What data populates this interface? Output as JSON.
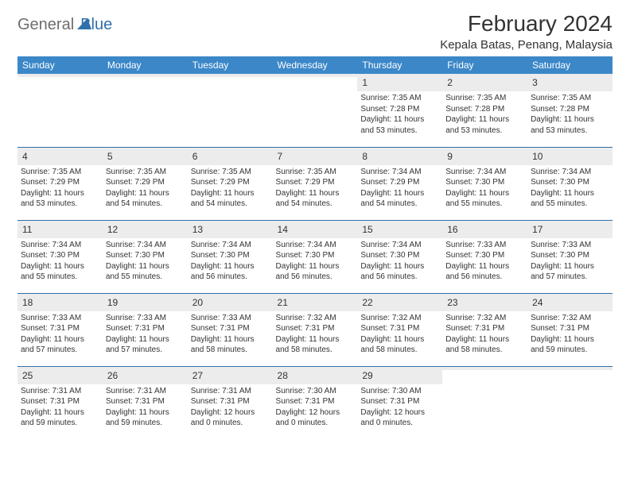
{
  "brand": {
    "part1": "General",
    "part2": "Blue"
  },
  "title": "February 2024",
  "location": "Kepala Batas, Penang, Malaysia",
  "colors": {
    "header_bg": "#3b87c8",
    "header_text": "#ffffff",
    "row_divider": "#2f6fab",
    "daynum_bg": "#ececec",
    "text": "#333333",
    "brand_gray": "#6e6e6e",
    "brand_blue": "#2f6fab"
  },
  "day_labels": [
    "Sunday",
    "Monday",
    "Tuesday",
    "Wednesday",
    "Thursday",
    "Friday",
    "Saturday"
  ],
  "weeks": [
    [
      {
        "day": "",
        "sunrise": "",
        "sunset": "",
        "daylight": ""
      },
      {
        "day": "",
        "sunrise": "",
        "sunset": "",
        "daylight": ""
      },
      {
        "day": "",
        "sunrise": "",
        "sunset": "",
        "daylight": ""
      },
      {
        "day": "",
        "sunrise": "",
        "sunset": "",
        "daylight": ""
      },
      {
        "day": "1",
        "sunrise": "Sunrise: 7:35 AM",
        "sunset": "Sunset: 7:28 PM",
        "daylight": "Daylight: 11 hours and 53 minutes."
      },
      {
        "day": "2",
        "sunrise": "Sunrise: 7:35 AM",
        "sunset": "Sunset: 7:28 PM",
        "daylight": "Daylight: 11 hours and 53 minutes."
      },
      {
        "day": "3",
        "sunrise": "Sunrise: 7:35 AM",
        "sunset": "Sunset: 7:28 PM",
        "daylight": "Daylight: 11 hours and 53 minutes."
      }
    ],
    [
      {
        "day": "4",
        "sunrise": "Sunrise: 7:35 AM",
        "sunset": "Sunset: 7:29 PM",
        "daylight": "Daylight: 11 hours and 53 minutes."
      },
      {
        "day": "5",
        "sunrise": "Sunrise: 7:35 AM",
        "sunset": "Sunset: 7:29 PM",
        "daylight": "Daylight: 11 hours and 54 minutes."
      },
      {
        "day": "6",
        "sunrise": "Sunrise: 7:35 AM",
        "sunset": "Sunset: 7:29 PM",
        "daylight": "Daylight: 11 hours and 54 minutes."
      },
      {
        "day": "7",
        "sunrise": "Sunrise: 7:35 AM",
        "sunset": "Sunset: 7:29 PM",
        "daylight": "Daylight: 11 hours and 54 minutes."
      },
      {
        "day": "8",
        "sunrise": "Sunrise: 7:34 AM",
        "sunset": "Sunset: 7:29 PM",
        "daylight": "Daylight: 11 hours and 54 minutes."
      },
      {
        "day": "9",
        "sunrise": "Sunrise: 7:34 AM",
        "sunset": "Sunset: 7:30 PM",
        "daylight": "Daylight: 11 hours and 55 minutes."
      },
      {
        "day": "10",
        "sunrise": "Sunrise: 7:34 AM",
        "sunset": "Sunset: 7:30 PM",
        "daylight": "Daylight: 11 hours and 55 minutes."
      }
    ],
    [
      {
        "day": "11",
        "sunrise": "Sunrise: 7:34 AM",
        "sunset": "Sunset: 7:30 PM",
        "daylight": "Daylight: 11 hours and 55 minutes."
      },
      {
        "day": "12",
        "sunrise": "Sunrise: 7:34 AM",
        "sunset": "Sunset: 7:30 PM",
        "daylight": "Daylight: 11 hours and 55 minutes."
      },
      {
        "day": "13",
        "sunrise": "Sunrise: 7:34 AM",
        "sunset": "Sunset: 7:30 PM",
        "daylight": "Daylight: 11 hours and 56 minutes."
      },
      {
        "day": "14",
        "sunrise": "Sunrise: 7:34 AM",
        "sunset": "Sunset: 7:30 PM",
        "daylight": "Daylight: 11 hours and 56 minutes."
      },
      {
        "day": "15",
        "sunrise": "Sunrise: 7:34 AM",
        "sunset": "Sunset: 7:30 PM",
        "daylight": "Daylight: 11 hours and 56 minutes."
      },
      {
        "day": "16",
        "sunrise": "Sunrise: 7:33 AM",
        "sunset": "Sunset: 7:30 PM",
        "daylight": "Daylight: 11 hours and 56 minutes."
      },
      {
        "day": "17",
        "sunrise": "Sunrise: 7:33 AM",
        "sunset": "Sunset: 7:30 PM",
        "daylight": "Daylight: 11 hours and 57 minutes."
      }
    ],
    [
      {
        "day": "18",
        "sunrise": "Sunrise: 7:33 AM",
        "sunset": "Sunset: 7:31 PM",
        "daylight": "Daylight: 11 hours and 57 minutes."
      },
      {
        "day": "19",
        "sunrise": "Sunrise: 7:33 AM",
        "sunset": "Sunset: 7:31 PM",
        "daylight": "Daylight: 11 hours and 57 minutes."
      },
      {
        "day": "20",
        "sunrise": "Sunrise: 7:33 AM",
        "sunset": "Sunset: 7:31 PM",
        "daylight": "Daylight: 11 hours and 58 minutes."
      },
      {
        "day": "21",
        "sunrise": "Sunrise: 7:32 AM",
        "sunset": "Sunset: 7:31 PM",
        "daylight": "Daylight: 11 hours and 58 minutes."
      },
      {
        "day": "22",
        "sunrise": "Sunrise: 7:32 AM",
        "sunset": "Sunset: 7:31 PM",
        "daylight": "Daylight: 11 hours and 58 minutes."
      },
      {
        "day": "23",
        "sunrise": "Sunrise: 7:32 AM",
        "sunset": "Sunset: 7:31 PM",
        "daylight": "Daylight: 11 hours and 58 minutes."
      },
      {
        "day": "24",
        "sunrise": "Sunrise: 7:32 AM",
        "sunset": "Sunset: 7:31 PM",
        "daylight": "Daylight: 11 hours and 59 minutes."
      }
    ],
    [
      {
        "day": "25",
        "sunrise": "Sunrise: 7:31 AM",
        "sunset": "Sunset: 7:31 PM",
        "daylight": "Daylight: 11 hours and 59 minutes."
      },
      {
        "day": "26",
        "sunrise": "Sunrise: 7:31 AM",
        "sunset": "Sunset: 7:31 PM",
        "daylight": "Daylight: 11 hours and 59 minutes."
      },
      {
        "day": "27",
        "sunrise": "Sunrise: 7:31 AM",
        "sunset": "Sunset: 7:31 PM",
        "daylight": "Daylight: 12 hours and 0 minutes."
      },
      {
        "day": "28",
        "sunrise": "Sunrise: 7:30 AM",
        "sunset": "Sunset: 7:31 PM",
        "daylight": "Daylight: 12 hours and 0 minutes."
      },
      {
        "day": "29",
        "sunrise": "Sunrise: 7:30 AM",
        "sunset": "Sunset: 7:31 PM",
        "daylight": "Daylight: 12 hours and 0 minutes."
      },
      {
        "day": "",
        "sunrise": "",
        "sunset": "",
        "daylight": ""
      },
      {
        "day": "",
        "sunrise": "",
        "sunset": "",
        "daylight": ""
      }
    ]
  ]
}
